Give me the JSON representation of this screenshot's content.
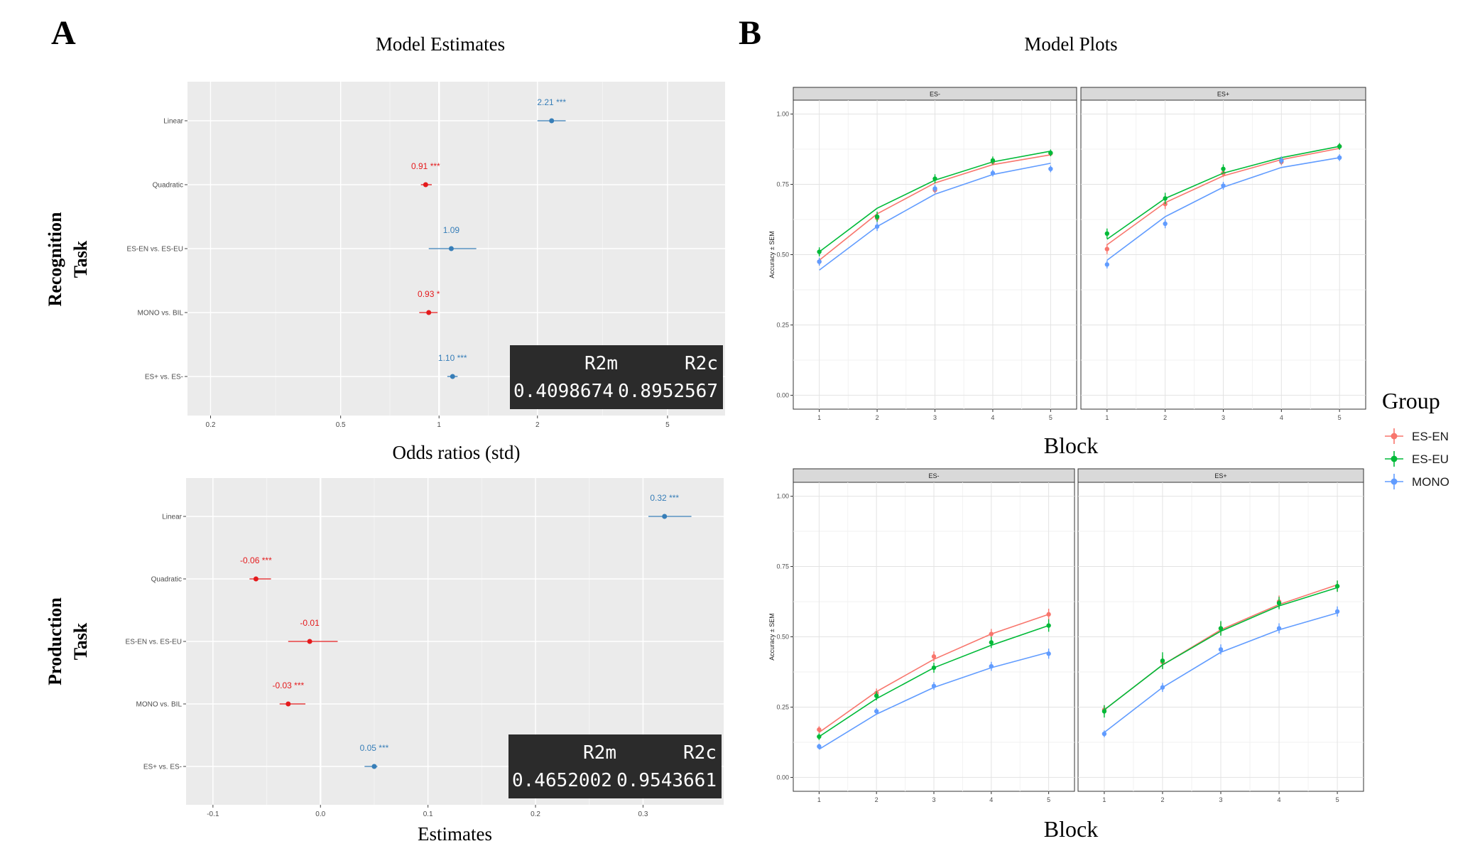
{
  "panel_a": {
    "letter": "A",
    "title": "Model Estimates",
    "recognition_label": [
      "Recognition",
      "Task"
    ],
    "production_label": [
      "Production",
      "Task"
    ]
  },
  "panel_b": {
    "letter": "B",
    "title": "Model Plots",
    "legend_title": "Group"
  },
  "colors": {
    "positive": "#377eb8",
    "negative": "#e41a1c",
    "ES-EN": "#F8766D",
    "ES-EU": "#00BA38",
    "MONO": "#619CFF",
    "panel_bg": "#ebebeb",
    "strip_bg": "#d9d9d9"
  },
  "chart_data": [
    {
      "id": "recognition-estimates",
      "type": "forest",
      "xlabel": "Odds ratios (std)",
      "scale": "log",
      "xlim": [
        0.17,
        7.5
      ],
      "xticks": [
        0.2,
        0.5,
        1,
        2,
        5
      ],
      "xtick_labels": [
        "0.2",
        "0.5",
        "1",
        "2",
        "5"
      ],
      "reference": 1,
      "terms": [
        {
          "term": "Linear",
          "estimate": 2.21,
          "ci": [
            2.0,
            2.44
          ],
          "label": "2.21 ***",
          "sign": "positive"
        },
        {
          "term": "Quadratic",
          "estimate": 0.91,
          "ci": [
            0.88,
            0.95
          ],
          "label": "0.91 ***",
          "sign": "negative"
        },
        {
          "term": "ES-EN vs. ES-EU",
          "estimate": 1.09,
          "ci": [
            0.93,
            1.3
          ],
          "label": "1.09",
          "sign": "positive"
        },
        {
          "term": "MONO vs. BIL",
          "estimate": 0.93,
          "ci": [
            0.87,
            0.99
          ],
          "label": "0.93 *",
          "sign": "negative"
        },
        {
          "term": "ES+ vs. ES-",
          "estimate": 1.1,
          "ci": [
            1.06,
            1.14
          ],
          "label": "1.10 ***",
          "sign": "positive"
        }
      ],
      "fit_table": {
        "headers": [
          "R2m",
          "R2c"
        ],
        "values": [
          "0.4098674",
          "0.8952567"
        ]
      }
    },
    {
      "id": "production-estimates",
      "type": "forest",
      "xlabel": "Estimates",
      "scale": "linear",
      "xlim": [
        -0.125,
        0.375
      ],
      "xticks": [
        -0.1,
        0.0,
        0.1,
        0.2,
        0.3
      ],
      "xtick_labels": [
        "-0.1",
        "0.0",
        "0.1",
        "0.2",
        "0.3"
      ],
      "reference": 0,
      "terms": [
        {
          "term": "Linear",
          "estimate": 0.32,
          "ci": [
            0.305,
            0.345
          ],
          "label": "0.32 ***",
          "sign": "positive"
        },
        {
          "term": "Quadratic",
          "estimate": -0.06,
          "ci": [
            -0.066,
            -0.046
          ],
          "label": "-0.06 ***",
          "sign": "negative"
        },
        {
          "term": "ES-EN vs. ES-EU",
          "estimate": -0.01,
          "ci": [
            -0.03,
            0.016
          ],
          "label": "-0.01",
          "sign": "negative"
        },
        {
          "term": "MONO vs. BIL",
          "estimate": -0.03,
          "ci": [
            -0.038,
            -0.014
          ],
          "label": "-0.03 ***",
          "sign": "negative"
        },
        {
          "term": "ES+ vs. ES-",
          "estimate": 0.05,
          "ci": [
            0.041,
            0.053
          ],
          "label": "0.05 ***",
          "sign": "positive"
        }
      ],
      "fit_table": {
        "headers": [
          "R2m",
          "R2c"
        ],
        "values": [
          "0.4652002",
          "0.9543661"
        ]
      }
    },
    {
      "id": "recognition-model-plot",
      "type": "line",
      "xlabel": "Block",
      "ylabel": "Accuracy ± SEM",
      "x": [
        1,
        2,
        3,
        4,
        5
      ],
      "ylim": [
        0,
        1
      ],
      "yticks": [
        "0.00",
        "0.25",
        "0.50",
        "0.75",
        "1.00"
      ],
      "facets": [
        {
          "name": "ES-",
          "series": [
            {
              "name": "ES-EN",
              "obs": [
                0.475,
                0.63,
                0.73,
                0.83,
                0.86
              ],
              "sem": [
                0.012,
                0.014,
                0.012,
                0.01,
                0.01
              ],
              "fit": [
                0.48,
                0.645,
                0.755,
                0.82,
                0.855
              ]
            },
            {
              "name": "ES-EU",
              "obs": [
                0.51,
                0.635,
                0.77,
                0.835,
                0.862
              ],
              "sem": [
                0.016,
                0.018,
                0.016,
                0.014,
                0.012
              ],
              "fit": [
                0.51,
                0.665,
                0.765,
                0.83,
                0.868
              ]
            },
            {
              "name": "MONO",
              "obs": [
                0.475,
                0.6,
                0.735,
                0.79,
                0.805
              ],
              "sem": [
                0.014,
                0.016,
                0.014,
                0.012,
                0.012
              ],
              "fit": [
                0.445,
                0.6,
                0.715,
                0.785,
                0.825
              ]
            }
          ]
        },
        {
          "name": "ES+",
          "series": [
            {
              "name": "ES-EN",
              "obs": [
                0.52,
                0.68,
                0.79,
                0.83,
                0.885
              ],
              "sem": [
                0.018,
                0.018,
                0.014,
                0.012,
                0.01
              ],
              "fit": [
                0.535,
                0.685,
                0.78,
                0.838,
                0.878
              ]
            },
            {
              "name": "ES-EU",
              "obs": [
                0.575,
                0.7,
                0.805,
                0.835,
                0.885
              ],
              "sem": [
                0.018,
                0.02,
                0.016,
                0.014,
                0.012
              ],
              "fit": [
                0.555,
                0.7,
                0.79,
                0.845,
                0.885
              ]
            },
            {
              "name": "MONO",
              "obs": [
                0.465,
                0.61,
                0.745,
                0.835,
                0.845
              ],
              "sem": [
                0.014,
                0.016,
                0.014,
                0.014,
                0.012
              ],
              "fit": [
                0.48,
                0.635,
                0.74,
                0.81,
                0.845
              ]
            }
          ]
        }
      ],
      "legend": [
        "ES-EN",
        "ES-EU",
        "MONO"
      ]
    },
    {
      "id": "production-model-plot",
      "type": "line",
      "xlabel": "Block",
      "ylabel": "Accuracy ± SEM",
      "x": [
        1,
        2,
        3,
        4,
        5
      ],
      "ylim": [
        0,
        1
      ],
      "yticks": [
        "0.00",
        "0.25",
        "0.50",
        "0.75",
        "1.00"
      ],
      "facets": [
        {
          "name": "ES-",
          "series": [
            {
              "name": "ES-EN",
              "obs": [
                0.17,
                0.3,
                0.43,
                0.51,
                0.58
              ],
              "sem": [
                0.012,
                0.016,
                0.018,
                0.018,
                0.02
              ],
              "fit": [
                0.16,
                0.305,
                0.42,
                0.51,
                0.58
              ]
            },
            {
              "name": "ES-EU",
              "obs": [
                0.145,
                0.29,
                0.39,
                0.48,
                0.54
              ],
              "sem": [
                0.012,
                0.016,
                0.018,
                0.02,
                0.022
              ],
              "fit": [
                0.145,
                0.28,
                0.39,
                0.47,
                0.54
              ]
            },
            {
              "name": "MONO",
              "obs": [
                0.11,
                0.235,
                0.325,
                0.395,
                0.44
              ],
              "sem": [
                0.01,
                0.012,
                0.014,
                0.016,
                0.018
              ],
              "fit": [
                0.1,
                0.225,
                0.32,
                0.39,
                0.445
              ]
            }
          ]
        },
        {
          "name": "ES+",
          "series": [
            {
              "name": "ES-EN",
              "obs": [
                0.24,
                0.41,
                0.53,
                0.625,
                0.68
              ],
              "sem": [
                0.016,
                0.022,
                0.022,
                0.022,
                0.02
              ],
              "fit": [
                0.24,
                0.4,
                0.525,
                0.615,
                0.685
              ]
            },
            {
              "name": "ES-EU",
              "obs": [
                0.235,
                0.415,
                0.53,
                0.62,
                0.68
              ],
              "sem": [
                0.022,
                0.03,
                0.026,
                0.022,
                0.02
              ],
              "fit": [
                0.24,
                0.4,
                0.52,
                0.61,
                0.675
              ]
            },
            {
              "name": "MONO",
              "obs": [
                0.155,
                0.32,
                0.455,
                0.53,
                0.59
              ],
              "sem": [
                0.012,
                0.016,
                0.018,
                0.018,
                0.018
              ],
              "fit": [
                0.16,
                0.32,
                0.445,
                0.525,
                0.585
              ]
            }
          ]
        }
      ],
      "legend": [
        "ES-EN",
        "ES-EU",
        "MONO"
      ]
    }
  ]
}
